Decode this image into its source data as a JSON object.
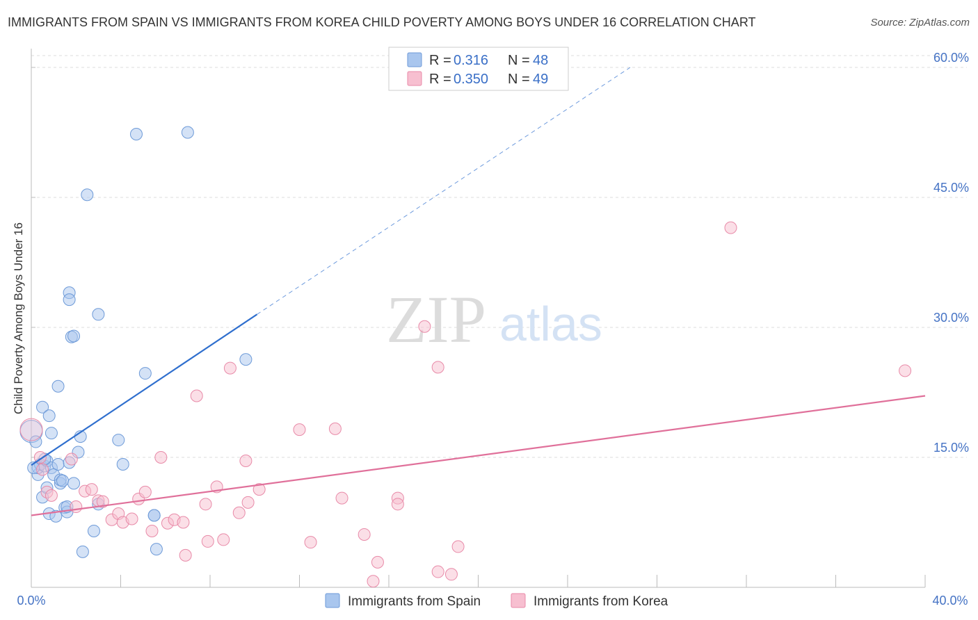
{
  "title": "IMMIGRANTS FROM SPAIN VS IMMIGRANTS FROM KOREA CHILD POVERTY AMONG BOYS UNDER 16 CORRELATION CHART",
  "source": "Source: ZipAtlas.com",
  "watermark": {
    "zip": "ZIP",
    "atlas": "atlas"
  },
  "colors": {
    "spain_fill": "#a9c6ee",
    "spain_stroke": "#6d9ad8",
    "spain_line": "#2f6fce",
    "korea_fill": "#f7bfd0",
    "korea_stroke": "#e88aa8",
    "korea_line": "#e0709a",
    "tick_label": "#4472c4",
    "grid": "#dddddd"
  },
  "legend": {
    "r_label": "R =",
    "n_label": "N =",
    "spain": {
      "r": "0.316",
      "n": "48"
    },
    "korea": {
      "r": "0.350",
      "n": "49"
    }
  },
  "chart_data": {
    "type": "scatter",
    "title": "IMMIGRANTS FROM SPAIN VS IMMIGRANTS FROM KOREA CHILD POVERTY AMONG BOYS UNDER 16 CORRELATION CHART",
    "xlabel": "",
    "ylabel": "Child Poverty Among Boys Under 16",
    "xlim": [
      0,
      40
    ],
    "ylim": [
      0,
      60
    ],
    "x_tick_labels": [
      "0.0%",
      "40.0%"
    ],
    "y_ticks": [
      15,
      30,
      45,
      60
    ],
    "y_tick_labels": [
      "15.0%",
      "30.0%",
      "45.0%",
      "60.0%"
    ],
    "grid": true,
    "legend_position": "top-center",
    "series": [
      {
        "name": "Immigrants from Spain",
        "r": 0.316,
        "n": 48,
        "trend": {
          "x0": 0,
          "y0": 14.1,
          "x1": 10.1,
          "y1": 31.5,
          "dash_x1": 26.8,
          "dash_y1": 60.0
        },
        "points": [
          [
            0.0,
            18.0
          ],
          [
            0.2,
            16.8
          ],
          [
            0.3,
            13.0
          ],
          [
            0.3,
            13.8
          ],
          [
            0.4,
            14.2
          ],
          [
            0.5,
            10.4
          ],
          [
            0.5,
            20.8
          ],
          [
            0.6,
            14.0
          ],
          [
            0.7,
            14.6
          ],
          [
            0.7,
            11.5
          ],
          [
            0.8,
            19.8
          ],
          [
            0.8,
            8.5
          ],
          [
            0.9,
            13.8
          ],
          [
            0.9,
            17.8
          ],
          [
            1.0,
            13.0
          ],
          [
            1.1,
            8.2
          ],
          [
            1.2,
            14.2
          ],
          [
            1.2,
            23.2
          ],
          [
            1.3,
            12.0
          ],
          [
            1.3,
            12.4
          ],
          [
            1.4,
            12.3
          ],
          [
            1.5,
            9.2
          ],
          [
            1.6,
            8.7
          ],
          [
            1.6,
            9.3
          ],
          [
            1.7,
            14.4
          ],
          [
            1.7,
            34.0
          ],
          [
            1.7,
            33.2
          ],
          [
            1.8,
            28.9
          ],
          [
            1.9,
            29.0
          ],
          [
            1.9,
            12.0
          ],
          [
            2.1,
            15.6
          ],
          [
            2.2,
            17.4
          ],
          [
            2.3,
            4.1
          ],
          [
            2.5,
            45.3
          ],
          [
            2.8,
            6.5
          ],
          [
            3.0,
            31.5
          ],
          [
            3.0,
            9.6
          ],
          [
            3.9,
            17.0
          ],
          [
            4.1,
            14.2
          ],
          [
            4.7,
            52.3
          ],
          [
            5.1,
            24.7
          ],
          [
            5.5,
            8.3
          ],
          [
            5.5,
            8.3
          ],
          [
            5.6,
            4.4
          ],
          [
            7.0,
            52.5
          ],
          [
            9.6,
            26.3
          ],
          [
            0.1,
            13.8
          ],
          [
            0.6,
            14.8
          ]
        ]
      },
      {
        "name": "Immigrants from Korea",
        "r": 0.35,
        "n": 49,
        "trend": {
          "x0": 0,
          "y0": 8.3,
          "x1": 40,
          "y1": 22.1
        },
        "points": [
          [
            0.0,
            18.2
          ],
          [
            0.4,
            15.0
          ],
          [
            0.7,
            11.0
          ],
          [
            0.9,
            10.6
          ],
          [
            1.8,
            14.8
          ],
          [
            2.0,
            9.3
          ],
          [
            2.4,
            11.1
          ],
          [
            2.7,
            11.3
          ],
          [
            3.0,
            10.0
          ],
          [
            3.2,
            9.9
          ],
          [
            3.6,
            7.8
          ],
          [
            3.9,
            8.5
          ],
          [
            4.1,
            7.5
          ],
          [
            4.5,
            7.9
          ],
          [
            4.8,
            10.2
          ],
          [
            5.1,
            11.0
          ],
          [
            5.4,
            6.5
          ],
          [
            5.8,
            15.0
          ],
          [
            6.1,
            7.4
          ],
          [
            6.4,
            7.8
          ],
          [
            6.8,
            7.5
          ],
          [
            6.9,
            3.7
          ],
          [
            7.4,
            22.1
          ],
          [
            7.8,
            9.6
          ],
          [
            7.9,
            5.3
          ],
          [
            8.3,
            11.6
          ],
          [
            8.6,
            5.5
          ],
          [
            8.9,
            25.3
          ],
          [
            9.3,
            8.6
          ],
          [
            9.6,
            14.6
          ],
          [
            9.7,
            9.8
          ],
          [
            10.2,
            11.3
          ],
          [
            12.0,
            18.2
          ],
          [
            12.5,
            5.2
          ],
          [
            13.6,
            18.3
          ],
          [
            13.9,
            10.3
          ],
          [
            14.9,
            6.1
          ],
          [
            15.3,
            0.7
          ],
          [
            15.5,
            2.9
          ],
          [
            16.4,
            10.3
          ],
          [
            16.4,
            9.6
          ],
          [
            17.6,
            30.1
          ],
          [
            18.2,
            1.8
          ],
          [
            18.2,
            25.4
          ],
          [
            18.8,
            1.5
          ],
          [
            19.1,
            4.7
          ],
          [
            31.3,
            41.5
          ],
          [
            39.1,
            25.0
          ],
          [
            0.5,
            13.6
          ]
        ]
      }
    ]
  }
}
